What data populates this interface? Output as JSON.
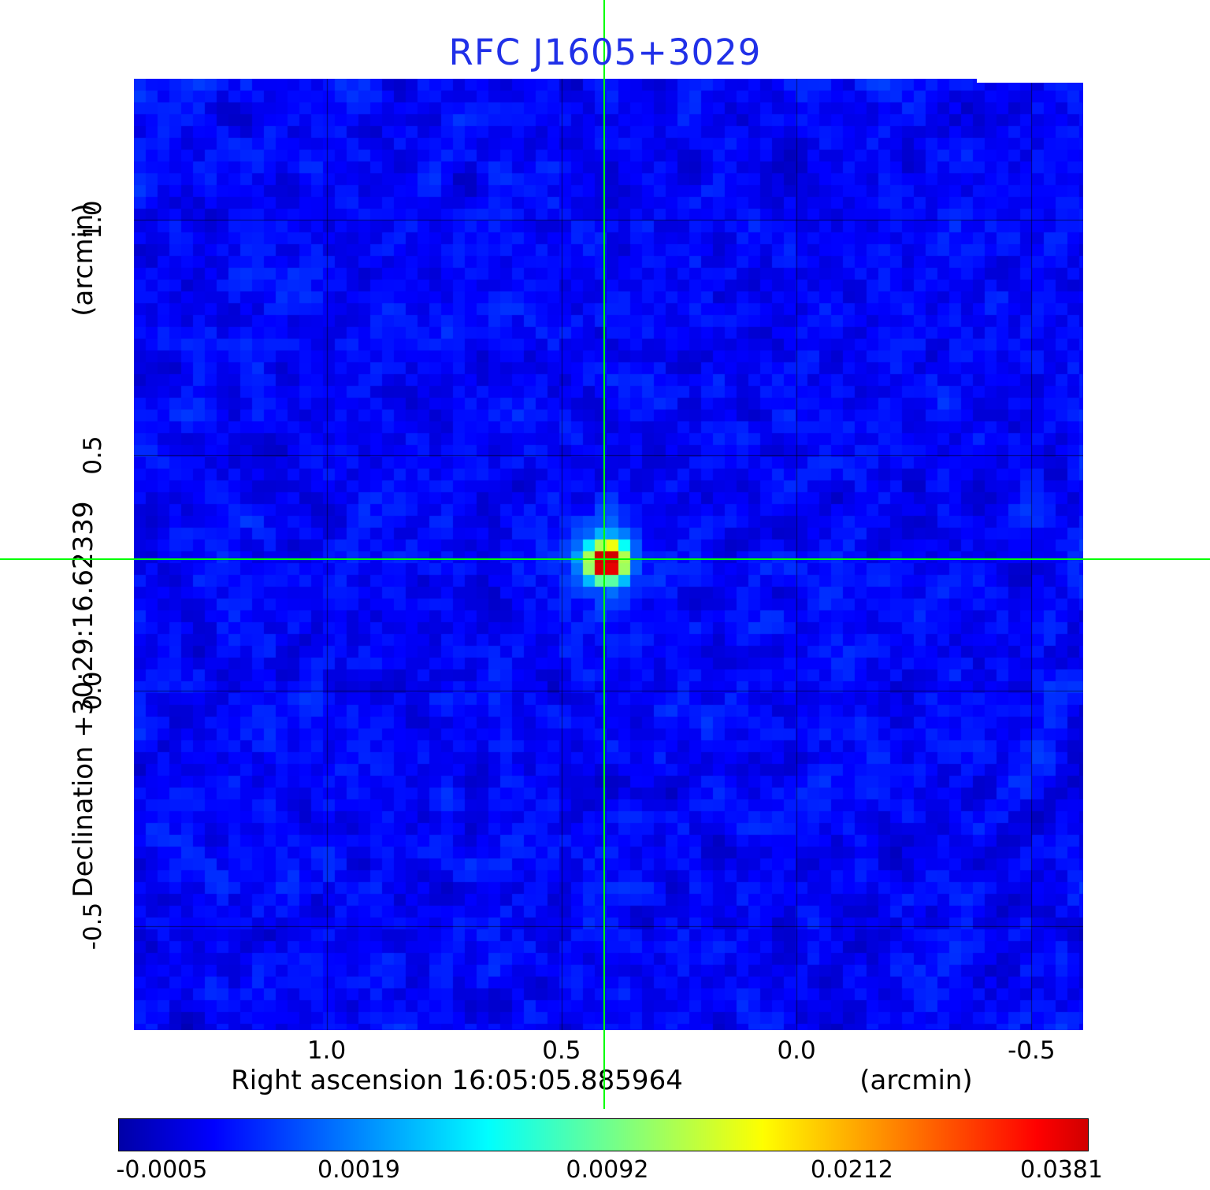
{
  "title": "RFC J1605+3029",
  "colors": {
    "title": "#2030e8",
    "crosshair": "#00ff00",
    "grid": "#000000",
    "background": "#ffffff"
  },
  "axes": {
    "y_unit": "(arcmin)",
    "y_label": "Declination  +30:29:16.62339",
    "x_label": "Right ascension  16:05:05.885964",
    "x_unit": "(arcmin)",
    "x_tick_labels": [
      "1.0",
      "0.5",
      "0.0",
      "-0.5"
    ],
    "y_tick_labels": [
      "1.0",
      "0.5",
      "0.0",
      "-0.5"
    ]
  },
  "colorbar": {
    "tick_labels": [
      "-0.0005",
      "0.0019",
      "0.0092",
      "0.0212",
      "0.0381"
    ]
  },
  "chart_data": {
    "type": "heatmap",
    "title": "RFC J1605+3029",
    "xlabel": "Right ascension 16:05:05.885964 (arcmin)",
    "ylabel": "Declination +30:29:16.62339 (arcmin)",
    "xlim": [
      1.41,
      -0.61
    ],
    "ylim": [
      -0.72,
      1.3
    ],
    "x_ticks": [
      1.0,
      0.5,
      0.0,
      -0.5
    ],
    "y_ticks": [
      1.0,
      0.5,
      0.0,
      -0.5
    ],
    "grid": true,
    "legend": "none",
    "colormap": "jet",
    "colorbar_ticks": [
      -0.0005,
      0.0019,
      0.0092,
      0.0212,
      0.0381
    ],
    "value_range": [
      -0.0005,
      0.0381
    ],
    "source": {
      "x_arcmin": 0.41,
      "y_arcmin": 0.28,
      "peak_value": 0.0381,
      "marker": "green-crosshair"
    }
  }
}
